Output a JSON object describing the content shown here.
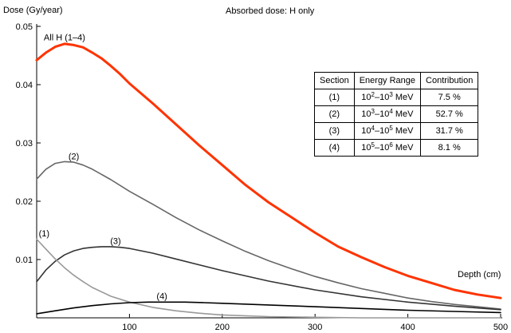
{
  "chart_data": {
    "type": "line",
    "title": "Absorbed dose: H only",
    "ylabel": "Dose (Gy/year)",
    "xlabel": "Depth (cm)",
    "xlim": [
      0,
      500
    ],
    "ylim": [
      0,
      0.05
    ],
    "x_ticks": [
      100,
      200,
      300,
      400,
      500
    ],
    "y_ticks": [
      0.01,
      0.02,
      0.03,
      0.04,
      0.05
    ],
    "x_tick_labels": [
      "100",
      "200",
      "300",
      "400",
      "500"
    ],
    "y_tick_labels": [
      "0.01",
      "0.02",
      "0.03",
      "0.04",
      "0.05"
    ],
    "grid": false,
    "legend_position": "top-right",
    "series": [
      {
        "name": "All H (1–4)",
        "color": "#ff3300",
        "x": [
          0,
          10,
          20,
          30,
          40,
          50,
          60,
          70,
          80,
          90,
          100,
          125,
          150,
          175,
          200,
          225,
          250,
          275,
          300,
          325,
          350,
          375,
          400,
          425,
          450,
          475,
          500
        ],
        "y": [
          0.0442,
          0.0455,
          0.0465,
          0.047,
          0.0468,
          0.0464,
          0.0455,
          0.0445,
          0.0432,
          0.0418,
          0.0402,
          0.0368,
          0.0332,
          0.0296,
          0.0262,
          0.0228,
          0.0198,
          0.0172,
          0.0146,
          0.0122,
          0.0104,
          0.0087,
          0.0072,
          0.006,
          0.0048,
          0.004,
          0.0034
        ]
      },
      {
        "name": "(2)",
        "color": "#666666",
        "x": [
          0,
          10,
          20,
          30,
          40,
          50,
          60,
          80,
          100,
          125,
          150,
          175,
          200,
          225,
          250,
          275,
          300,
          325,
          350,
          375,
          400,
          425,
          450,
          475,
          500
        ],
        "y": [
          0.0238,
          0.0255,
          0.0265,
          0.0268,
          0.0267,
          0.0262,
          0.0255,
          0.0237,
          0.0217,
          0.0195,
          0.0172,
          0.0151,
          0.0132,
          0.0114,
          0.0098,
          0.0084,
          0.0071,
          0.006,
          0.005,
          0.0042,
          0.0034,
          0.0028,
          0.0023,
          0.0019,
          0.0015
        ]
      },
      {
        "name": "(3)",
        "color": "#333333",
        "x": [
          0,
          10,
          20,
          30,
          40,
          50,
          60,
          70,
          80,
          90,
          100,
          125,
          150,
          175,
          200,
          250,
          300,
          350,
          400,
          450,
          500
        ],
        "y": [
          0.0062,
          0.0082,
          0.0097,
          0.0108,
          0.0115,
          0.0119,
          0.0121,
          0.0122,
          0.0122,
          0.0121,
          0.0119,
          0.0111,
          0.0101,
          0.0091,
          0.0081,
          0.0063,
          0.0048,
          0.0036,
          0.0027,
          0.002,
          0.0014
        ]
      },
      {
        "name": "(1)",
        "color": "#999999",
        "x": [
          0,
          10,
          20,
          30,
          40,
          50,
          60,
          80,
          100,
          125,
          150,
          175,
          200,
          250,
          300,
          350,
          400,
          450,
          500
        ],
        "y": [
          0.0135,
          0.0118,
          0.0101,
          0.0086,
          0.0073,
          0.0062,
          0.0052,
          0.0037,
          0.0027,
          0.0018,
          0.0012,
          0.0008,
          0.0005,
          0.0002,
          0.0001,
          0.0,
          0.0,
          0.0,
          0.0
        ]
      },
      {
        "name": "(4)",
        "color": "#000000",
        "x": [
          0,
          20,
          40,
          60,
          80,
          100,
          120,
          140,
          160,
          180,
          200,
          250,
          300,
          350,
          400,
          450,
          500
        ],
        "y": [
          0.0007,
          0.0012,
          0.0017,
          0.0021,
          0.0024,
          0.0026,
          0.0027,
          0.0027,
          0.0027,
          0.0026,
          0.0025,
          0.0022,
          0.0019,
          0.0016,
          0.0013,
          0.0011,
          0.0009
        ]
      }
    ],
    "annotations": [
      {
        "text": "All H (1–4)",
        "x": 30,
        "y": 0.0476
      },
      {
        "text": "(2)",
        "x": 40,
        "y": 0.0272
      },
      {
        "text": "(3)",
        "x": 85,
        "y": 0.0127
      },
      {
        "text": "(1)",
        "x": 8,
        "y": 0.014
      },
      {
        "text": "(4)",
        "x": 135,
        "y": 0.0032
      }
    ]
  },
  "legend_table": {
    "headers": [
      "Section",
      "Energy Range",
      "Contribution"
    ],
    "rows": [
      {
        "section": "(1)",
        "from_base": "10",
        "from_exp": "2",
        "to_base": "10",
        "to_exp": "3",
        "unit": "MeV",
        "contribution": "7.5 %"
      },
      {
        "section": "(2)",
        "from_base": "10",
        "from_exp": "3",
        "to_base": "10",
        "to_exp": "4",
        "unit": "MeV",
        "contribution": "52.7 %"
      },
      {
        "section": "(3)",
        "from_base": "10",
        "from_exp": "4",
        "to_base": "10",
        "to_exp": "5",
        "unit": "MeV",
        "contribution": "31.7 %"
      },
      {
        "section": "(4)",
        "from_base": "10",
        "from_exp": "5",
        "to_base": "10",
        "to_exp": "6",
        "unit": "MeV",
        "contribution": "8.1 %"
      }
    ],
    "range_separator": "–"
  }
}
